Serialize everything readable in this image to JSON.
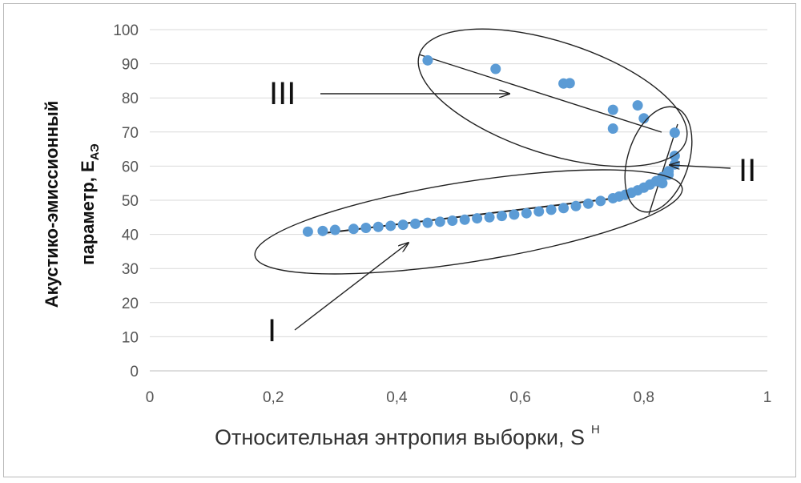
{
  "chart_data": {
    "type": "scatter",
    "title": "",
    "xlabel": "Относительная энтропия выборки, S",
    "xlabel_sup": "Н",
    "ylabel_line1": "Акустико-эмиссионный",
    "ylabel_line2": "параметр, E",
    "ylabel_sub": "АЭ",
    "xlim": [
      0,
      1
    ],
    "ylim": [
      0,
      100
    ],
    "x_ticks": [
      "0",
      "0,2",
      "0,4",
      "0,6",
      "0,8",
      "1"
    ],
    "y_ticks": [
      "0",
      "10",
      "20",
      "30",
      "40",
      "50",
      "60",
      "70",
      "80",
      "90",
      "100"
    ],
    "grid": "horizontal",
    "point_color": "#5b9bd5",
    "series": [
      {
        "x": [
          0.256,
          0.28,
          0.3,
          0.33,
          0.35,
          0.37,
          0.39,
          0.41,
          0.43,
          0.45,
          0.47,
          0.49,
          0.51,
          0.53,
          0.55,
          0.57,
          0.59,
          0.61,
          0.63,
          0.65,
          0.67,
          0.69,
          0.71,
          0.73,
          0.75,
          0.76,
          0.77,
          0.78,
          0.79,
          0.8,
          0.81,
          0.82,
          0.83,
          0.84,
          0.85,
          0.85,
          0.84,
          0.83,
          0.45,
          0.56,
          0.67,
          0.68,
          0.75,
          0.75,
          0.79,
          0.8,
          0.85
        ],
        "y": [
          40.8,
          41.0,
          41.3,
          41.6,
          41.9,
          42.2,
          42.5,
          42.8,
          43.1,
          43.4,
          43.7,
          44.0,
          44.3,
          44.7,
          45.0,
          45.4,
          45.8,
          46.2,
          46.7,
          47.2,
          47.7,
          48.3,
          49.0,
          49.8,
          50.6,
          51.1,
          51.6,
          52.2,
          52.9,
          53.7,
          54.6,
          55.6,
          56.8,
          58.5,
          60.5,
          63.0,
          57.5,
          55.0,
          91.0,
          88.5,
          84.2,
          84.3,
          76.5,
          71.0,
          77.8,
          74.0,
          69.8
        ]
      }
    ],
    "annotations": {
      "labels": [
        "I",
        "II",
        "III"
      ],
      "groups": [
        "I",
        "II",
        "III"
      ]
    }
  }
}
